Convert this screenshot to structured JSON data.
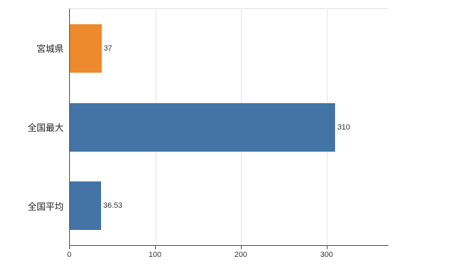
{
  "chart_data": {
    "type": "bar",
    "orientation": "horizontal",
    "title": "",
    "xlabel": "",
    "ylabel": "",
    "categories": [
      "宮城県",
      "全国最大",
      "全国平均"
    ],
    "values": [
      37,
      310,
      36.53
    ],
    "value_labels": [
      "37",
      "310",
      "36.53"
    ],
    "bar_colors": [
      "#ED8A2E",
      "#4474A6",
      "#4474A6"
    ],
    "xlim": [
      0,
      372
    ],
    "x_ticks": [
      0,
      100,
      200,
      300
    ],
    "grid": true,
    "legend": "none",
    "axis_color": "#444444",
    "gridline_color": "#e4e4e4"
  }
}
